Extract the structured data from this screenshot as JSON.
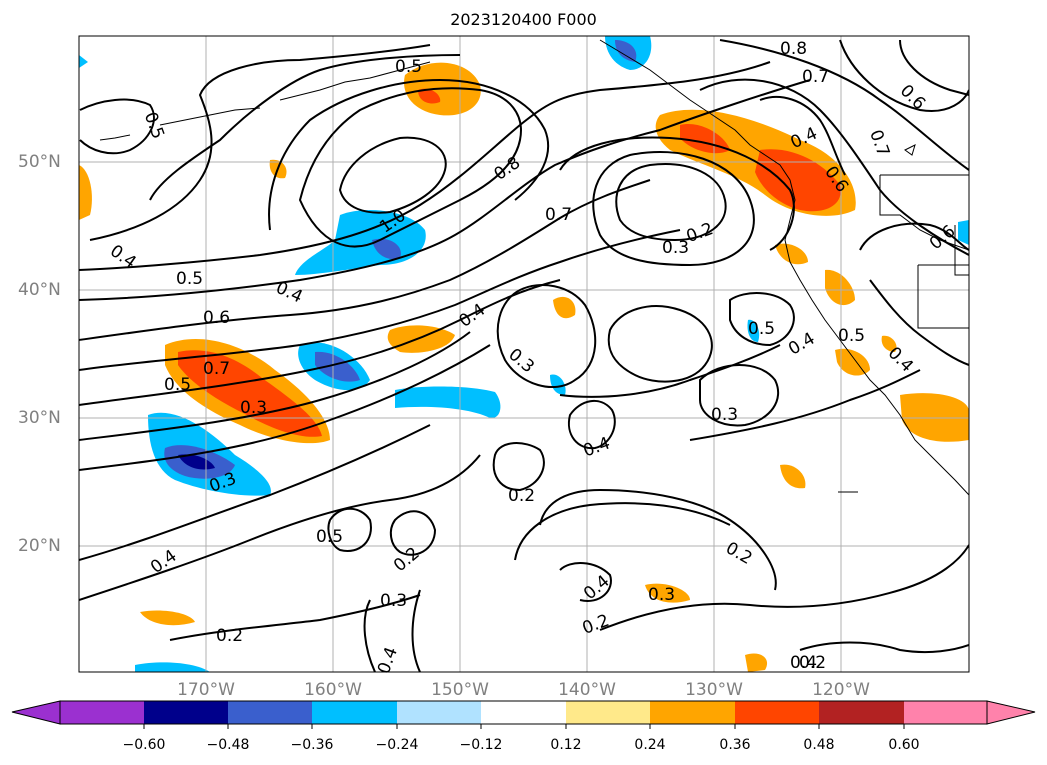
{
  "title": "2023120400 F000",
  "lat_labels": [
    "50°N",
    "40°N",
    "30°N",
    "20°N"
  ],
  "lon_labels": [
    "170°W",
    "160°W",
    "150°W",
    "140°W",
    "130°W",
    "120°W"
  ],
  "colorbar": {
    "ticks": [
      "−0.60",
      "−0.48",
      "−0.36",
      "−0.24",
      "−0.12",
      "0.12",
      "0.24",
      "0.36",
      "0.48",
      "0.60"
    ],
    "colors": [
      "#9b30d0",
      "#00008b",
      "#3a5fcd",
      "#00bfff",
      "#b0e2ff",
      "#ffffff",
      "#ffe98a",
      "#ffa500",
      "#ff4500",
      "#b22222",
      "#ff82ab"
    ]
  },
  "contour_labels": [
    "0.8",
    "0.7",
    "0.5",
    "0.6",
    "0.4",
    "0.5",
    "0.8",
    "0.7",
    "1.0",
    "0.4",
    "0.4",
    "0.5",
    "0.6",
    "0.3",
    "0.2",
    "0.4",
    "0.7",
    "0.5",
    "0.3",
    "0.3",
    "0.5",
    "0.4",
    "0.3",
    "0.4",
    "0.3",
    "0.2",
    "0.4",
    "0.2",
    "0.5",
    "0.2",
    "0.4",
    "0.3",
    "0.4",
    "0.2",
    "0.3",
    "0.2",
    "0.4",
    "0.2",
    "0.4",
    "0.6",
    "0.6",
    "0.7",
    "0.5"
  ],
  "colors": {
    "contour": "#000000",
    "grid": "#b0b0b0",
    "axis_label": "#808080"
  }
}
